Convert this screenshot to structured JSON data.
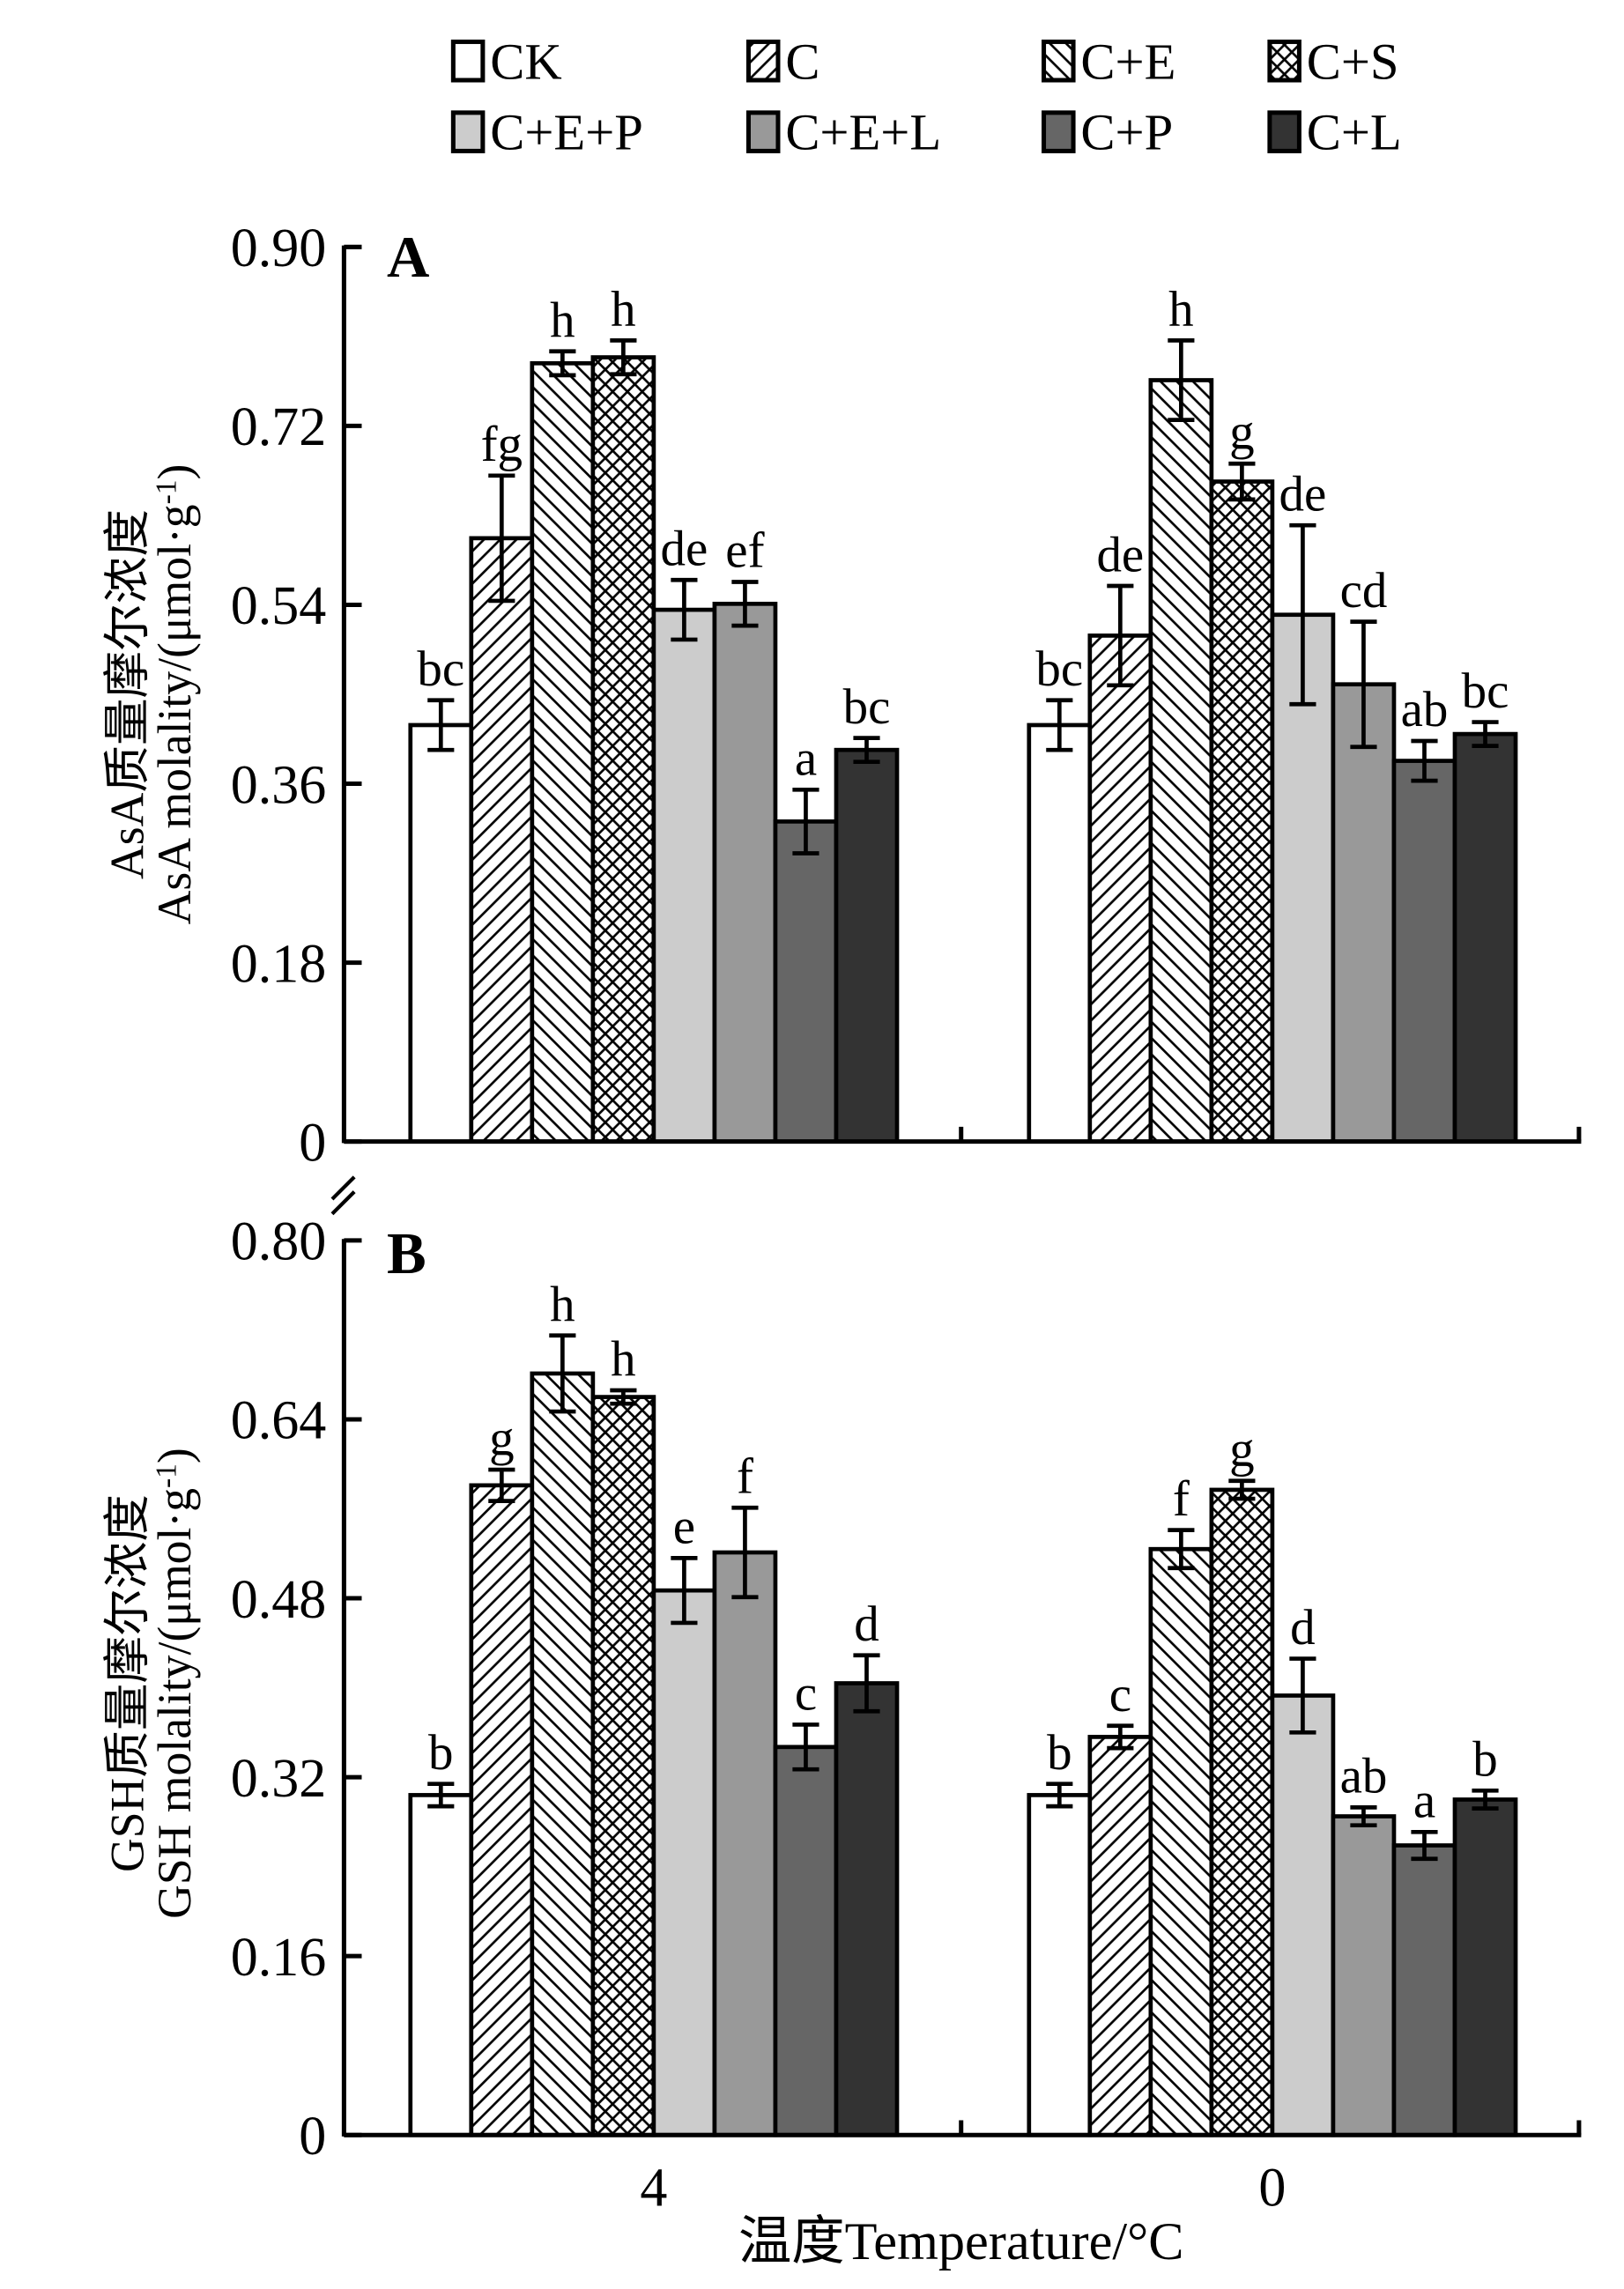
{
  "chart_data": [
    {
      "type": "bar",
      "panel": "A",
      "ylabel_cn": "AsA质量摩尔浓度",
      "ylabel_en": "AsA molality/(μmol·g",
      "ylabel_sup": "-1",
      "ylabel_close": ")",
      "ylim": [
        0,
        0.9
      ],
      "yticks": [
        "0",
        "0.18",
        "0.36",
        "0.54",
        "0.72",
        "0.90"
      ],
      "ytick_values": [
        0,
        0.18,
        0.36,
        0.54,
        0.72,
        0.9
      ],
      "categories": [
        "4",
        "0"
      ],
      "series": [
        {
          "name": "CK",
          "values": [
            0.419,
            0.419
          ],
          "errors": [
            0.025,
            0.025
          ],
          "letters": [
            "bc",
            "bc"
          ]
        },
        {
          "name": "C",
          "values": [
            0.607,
            0.509
          ],
          "errors": [
            0.063,
            0.05
          ],
          "letters": [
            "fg",
            "de"
          ]
        },
        {
          "name": "C+E",
          "values": [
            0.783,
            0.766
          ],
          "errors": [
            0.012,
            0.04
          ],
          "letters": [
            "h",
            "h"
          ]
        },
        {
          "name": "C+S",
          "values": [
            0.789,
            0.664
          ],
          "errors": [
            0.017,
            0.018
          ],
          "letters": [
            "h",
            "g"
          ]
        },
        {
          "name": "C+E+P",
          "values": [
            0.535,
            0.53
          ],
          "errors": [
            0.03,
            0.09
          ],
          "letters": [
            "de",
            "de"
          ]
        },
        {
          "name": "C+E+L",
          "values": [
            0.541,
            0.46
          ],
          "errors": [
            0.022,
            0.063
          ],
          "letters": [
            "ef",
            "cd"
          ]
        },
        {
          "name": "C+P",
          "values": [
            0.322,
            0.383
          ],
          "errors": [
            0.032,
            0.02
          ],
          "letters": [
            "a",
            "ab"
          ]
        },
        {
          "name": "C+L",
          "values": [
            0.394,
            0.41
          ],
          "errors": [
            0.012,
            0.012
          ],
          "letters": [
            "bc",
            "bc"
          ]
        }
      ]
    },
    {
      "type": "bar",
      "panel": "B",
      "ylabel_cn": "GSH质量摩尔浓度",
      "ylabel_en": "GSH molality/(μmol·g",
      "ylabel_sup": "-1",
      "ylabel_close": ")",
      "ylim": [
        0,
        0.8
      ],
      "yticks": [
        "0",
        "0.16",
        "0.32",
        "0.48",
        "0.64",
        "0.80"
      ],
      "ytick_values": [
        0,
        0.16,
        0.32,
        0.48,
        0.64,
        0.8
      ],
      "categories": [
        "4",
        "0"
      ],
      "xlabel": "温度Temperature/°C",
      "series": [
        {
          "name": "CK",
          "values": [
            0.304,
            0.304
          ],
          "errors": [
            0.01,
            0.01
          ],
          "letters": [
            "b",
            "b"
          ]
        },
        {
          "name": "C",
          "values": [
            0.581,
            0.356
          ],
          "errors": [
            0.014,
            0.01
          ],
          "letters": [
            "g",
            "c"
          ]
        },
        {
          "name": "C+E",
          "values": [
            0.681,
            0.524
          ],
          "errors": [
            0.034,
            0.017
          ],
          "letters": [
            "h",
            "f"
          ]
        },
        {
          "name": "C+S",
          "values": [
            0.66,
            0.577
          ],
          "errors": [
            0.006,
            0.008
          ],
          "letters": [
            "h",
            "g"
          ]
        },
        {
          "name": "C+E+P",
          "values": [
            0.487,
            0.393
          ],
          "errors": [
            0.029,
            0.033
          ],
          "letters": [
            "e",
            "d"
          ]
        },
        {
          "name": "C+E+L",
          "values": [
            0.521,
            0.285
          ],
          "errors": [
            0.04,
            0.008
          ],
          "letters": [
            "f",
            "ab"
          ]
        },
        {
          "name": "C+P",
          "values": [
            0.347,
            0.259
          ],
          "errors": [
            0.02,
            0.012
          ],
          "letters": [
            "c",
            "a"
          ]
        },
        {
          "name": "C+L",
          "values": [
            0.404,
            0.3
          ],
          "errors": [
            0.025,
            0.008
          ],
          "letters": [
            "d",
            "b"
          ]
        }
      ]
    }
  ],
  "legend": {
    "placement": "top",
    "items": [
      {
        "label": "CK",
        "fill": "#ffffff",
        "pattern": "none"
      },
      {
        "label": "C",
        "fill": "#ffffff",
        "pattern": "forward-diagonal"
      },
      {
        "label": "C+E",
        "fill": "#ffffff",
        "pattern": "backward-diagonal"
      },
      {
        "label": "C+S",
        "fill": "#ffffff",
        "pattern": "crosshatch"
      },
      {
        "label": "C+E+P",
        "fill": "#cccccc",
        "pattern": "none"
      },
      {
        "label": "C+E+L",
        "fill": "#999999",
        "pattern": "none"
      },
      {
        "label": "C+P",
        "fill": "#666666",
        "pattern": "none"
      },
      {
        "label": "C+L",
        "fill": "#333333",
        "pattern": "none"
      }
    ]
  }
}
